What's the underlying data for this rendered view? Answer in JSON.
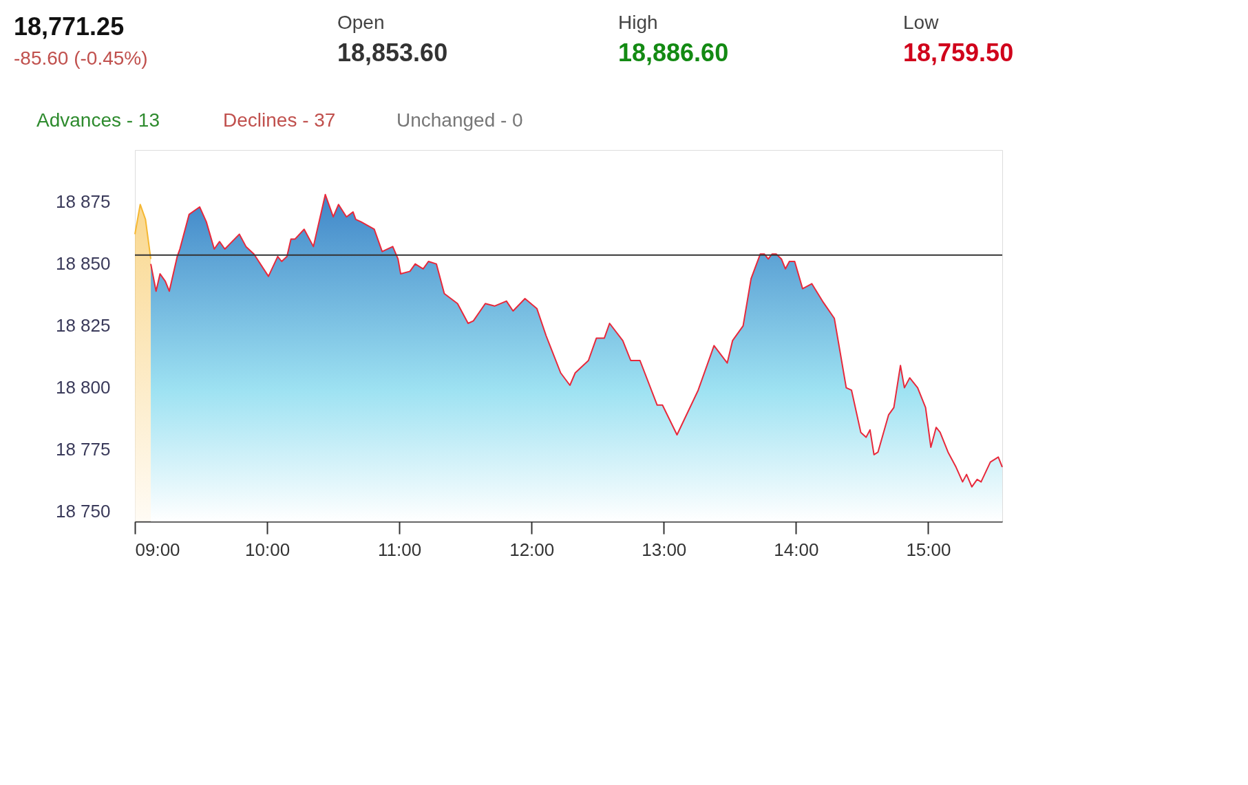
{
  "chart_data": {
    "type": "area",
    "annotations": [
      "18,771.25",
      "-85.60 (-0.45%)",
      "Open",
      "18,853.60",
      "High",
      "18,886.60",
      "Low",
      "18,759.50",
      "Advances - 13",
      "Declines - 37",
      "Unchanged - 0"
    ],
    "xlim": [
      9,
      15.56
    ],
    "xticks": [
      {
        "value": 9,
        "label": "09:00"
      },
      {
        "value": 10,
        "label": "10:00"
      },
      {
        "value": 11,
        "label": "11:00"
      },
      {
        "value": 12,
        "label": "12:00"
      },
      {
        "value": 13,
        "label": "13:00"
      },
      {
        "value": 14,
        "label": "14:00"
      },
      {
        "value": 15,
        "label": "15:00"
      }
    ],
    "ylim": [
      18746,
      18896
    ],
    "yticks": [
      {
        "value": 18750,
        "label": "18 750"
      },
      {
        "value": 18775,
        "label": "18 775"
      },
      {
        "value": 18800,
        "label": "18 800"
      },
      {
        "value": 18825,
        "label": "18 825"
      },
      {
        "value": 18850,
        "label": "18 850"
      },
      {
        "value": 18875,
        "label": "18 875"
      }
    ],
    "ref_lines": [
      {
        "axis": "y",
        "value": 18853.6,
        "color": "#333333"
      }
    ],
    "series": [
      {
        "color": "#f5b731",
        "x": [
          9.0,
          9.04,
          9.08,
          9.12
        ],
        "values": [
          18862,
          18874,
          18868,
          18852
        ]
      },
      {
        "color": "#e8283a",
        "x": [
          9.12,
          9.16,
          9.19,
          9.23,
          9.26,
          9.32,
          9.34,
          9.41,
          9.49,
          9.54,
          9.6,
          9.64,
          9.68,
          9.79,
          9.84,
          9.9,
          10.01,
          10.08,
          10.11,
          10.15,
          10.18,
          10.21,
          10.28,
          10.35,
          10.44,
          10.5,
          10.54,
          10.6,
          10.65,
          10.67,
          10.71,
          10.81,
          10.87,
          10.95,
          10.99,
          11.01,
          11.08,
          11.12,
          11.18,
          11.22,
          11.28,
          11.34,
          11.44,
          11.52,
          11.56,
          11.65,
          11.72,
          11.81,
          11.86,
          11.95,
          12.04,
          12.11,
          12.22,
          12.29,
          12.33,
          12.43,
          12.49,
          12.55,
          12.59,
          12.69,
          12.75,
          12.82,
          12.95,
          12.99,
          13.1,
          13.26,
          13.38,
          13.48,
          13.52,
          13.6,
          13.66,
          13.73,
          13.76,
          13.79,
          13.82,
          13.85,
          13.89,
          13.92,
          13.95,
          13.99,
          14.05,
          14.12,
          14.2,
          14.29,
          14.38,
          14.42,
          14.49,
          14.53,
          14.56,
          14.59,
          14.62,
          14.7,
          14.74,
          14.79,
          14.82,
          14.86,
          14.92,
          14.98,
          15.02,
          15.06,
          15.09,
          15.15,
          15.21,
          15.26,
          15.29,
          15.33,
          15.37,
          15.4,
          15.47,
          15.53,
          15.56
        ],
        "values": [
          18850,
          18839,
          18846,
          18843,
          18839,
          18853,
          18856,
          18870,
          18873,
          18867,
          18856,
          18859,
          18856,
          18862,
          18857,
          18854,
          18845,
          18853,
          18851,
          18853,
          18860,
          18860,
          18864,
          18857,
          18878,
          18869,
          18874,
          18869,
          18871,
          18868,
          18867,
          18864,
          18855,
          18857,
          18852,
          18846,
          18847,
          18850,
          18848,
          18851,
          18850,
          18838,
          18834,
          18826,
          18827,
          18834,
          18833,
          18835,
          18831,
          18836,
          18832,
          18821,
          18806,
          18801,
          18806,
          18811,
          18820,
          18820,
          18826,
          18819,
          18811,
          18811,
          18793,
          18793,
          18781,
          18799,
          18817,
          18810,
          18819,
          18825,
          18844,
          18854,
          18854,
          18852,
          18854,
          18854,
          18852,
          18848,
          18851,
          18851,
          18840,
          18842,
          18835,
          18828,
          18800,
          18799,
          18782,
          18780,
          18783,
          18773,
          18774,
          18789,
          18792,
          18809,
          18800,
          18804,
          18800,
          18792,
          18776,
          18784,
          18782,
          18774,
          18768,
          18762,
          18765,
          18760,
          18763,
          18762,
          18770,
          18772,
          18768
        ]
      }
    ]
  }
}
